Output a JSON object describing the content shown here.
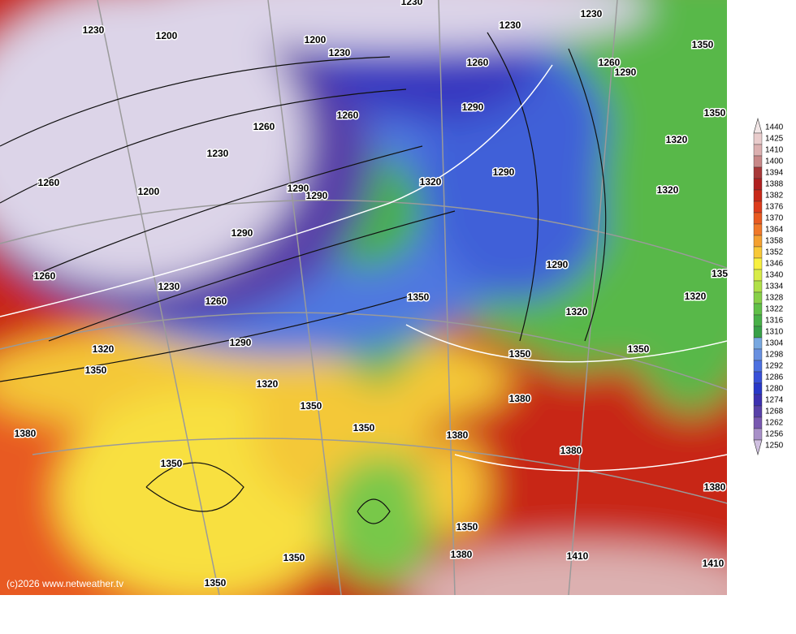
{
  "map": {
    "contour_labels": [
      1230,
      1200,
      1200,
      1230,
      1230,
      1230,
      1230,
      1350,
      1260,
      1260,
      1290,
      1290,
      1260,
      1260,
      1350,
      1230,
      1320,
      1260,
      1200,
      1290,
      1320,
      1290,
      1290,
      1320,
      1290,
      1260,
      1290,
      1230,
      1350,
      1320,
      1260,
      1320,
      135,
      1290,
      1320,
      1350,
      1350,
      1350,
      1320,
      1380,
      1350,
      1380,
      1350,
      1380,
      1380,
      1350,
      1380,
      1350,
      1380,
      1350,
      1410,
      1410,
      1350
    ],
    "copyright": "(c)2026 www.netweather.tv",
    "legend": {
      "levels": [
        1440,
        1425,
        1410,
        1400,
        1394,
        1388,
        1382,
        1376,
        1370,
        1364,
        1358,
        1352,
        1346,
        1340,
        1334,
        1328,
        1322,
        1316,
        1310,
        1304,
        1298,
        1292,
        1286,
        1280,
        1274,
        1268,
        1262,
        1256,
        1250
      ],
      "colors": [
        "#f2e6e6",
        "#e9cccc",
        "#dcb0b0",
        "#c88888",
        "#a83838",
        "#b02020",
        "#c82818",
        "#dc3c1c",
        "#e85a20",
        "#f07828",
        "#f4a030",
        "#f8c838",
        "#f8f040",
        "#d8ec48",
        "#b0e048",
        "#88d048",
        "#60c048",
        "#48b048",
        "#38a048",
        "#78a8e0",
        "#6890e0",
        "#4c70e0",
        "#3850d8",
        "#2838c8",
        "#3c30b0",
        "#5840a8",
        "#7858b0",
        "#a890c8",
        "#d0c0e0"
      ]
    }
  }
}
